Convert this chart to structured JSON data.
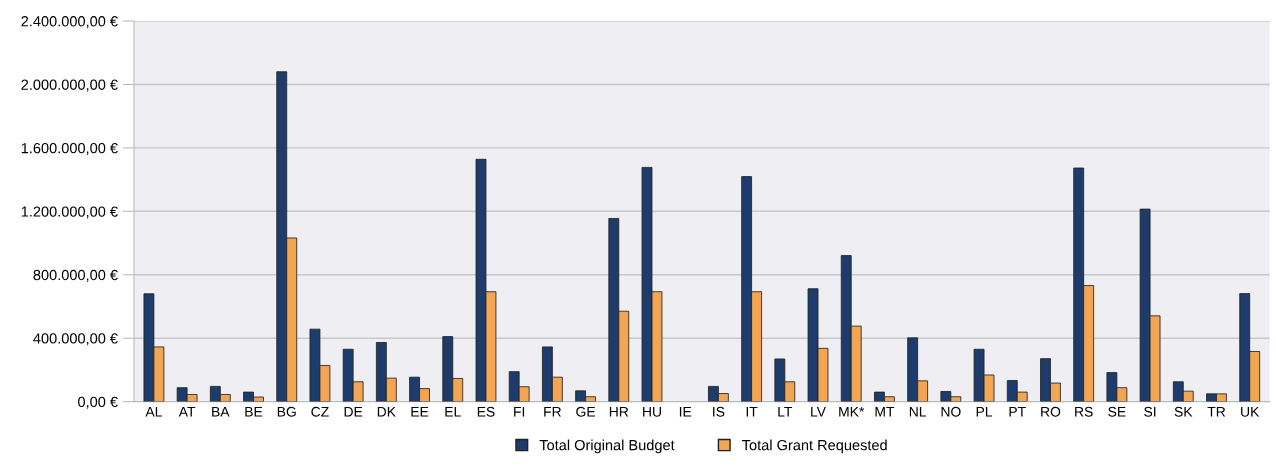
{
  "chart_data": {
    "type": "bar",
    "categories": [
      "AL",
      "AT",
      "BA",
      "BE",
      "BG",
      "CZ",
      "DE",
      "DK",
      "EE",
      "EL",
      "ES",
      "FI",
      "FR",
      "GE",
      "HR",
      "HU",
      "IE",
      "IS",
      "IT",
      "LT",
      "LV",
      "MK*",
      "MT",
      "NL",
      "NO",
      "PL",
      "PT",
      "RO",
      "RS",
      "SE",
      "SI",
      "SK",
      "TR",
      "UK"
    ],
    "series": [
      {
        "name": "Total Original Budget",
        "color": "#1d3c6b",
        "values": [
          680000,
          88000,
          96000,
          60000,
          2080000,
          457000,
          330000,
          373000,
          154000,
          410000,
          1528000,
          189000,
          345000,
          68000,
          1155000,
          1477000,
          0,
          96000,
          1419000,
          269000,
          712000,
          921000,
          60000,
          402000,
          64000,
          330000,
          133000,
          271000,
          1473000,
          183000,
          1214000,
          125000,
          49000,
          681000
        ]
      },
      {
        "name": "Total Grant Requested",
        "color": "#f2a553",
        "values": [
          345000,
          45000,
          45000,
          29000,
          1032000,
          228000,
          125000,
          148000,
          82000,
          146000,
          693000,
          94000,
          154000,
          31000,
          570000,
          693000,
          0,
          51000,
          693000,
          125000,
          336000,
          476000,
          31000,
          131000,
          31000,
          168000,
          60000,
          117000,
          732000,
          88000,
          541000,
          66000,
          49000,
          316000
        ]
      }
    ],
    "ylim": [
      0,
      2400000
    ],
    "yticks": [
      {
        "value": 0,
        "label": "0,00 €"
      },
      {
        "value": 400000,
        "label": "400.000,00 €"
      },
      {
        "value": 800000,
        "label": "800.000,00 €"
      },
      {
        "value": 1200000,
        "label": "1.200.000,00 €"
      },
      {
        "value": 1600000,
        "label": "1.600.000,00 €"
      },
      {
        "value": 2000000,
        "label": "2.000.000,00 €"
      },
      {
        "value": 2400000,
        "label": "2.400.000,00 €"
      }
    ],
    "grid": "y",
    "legend": "bottom"
  }
}
